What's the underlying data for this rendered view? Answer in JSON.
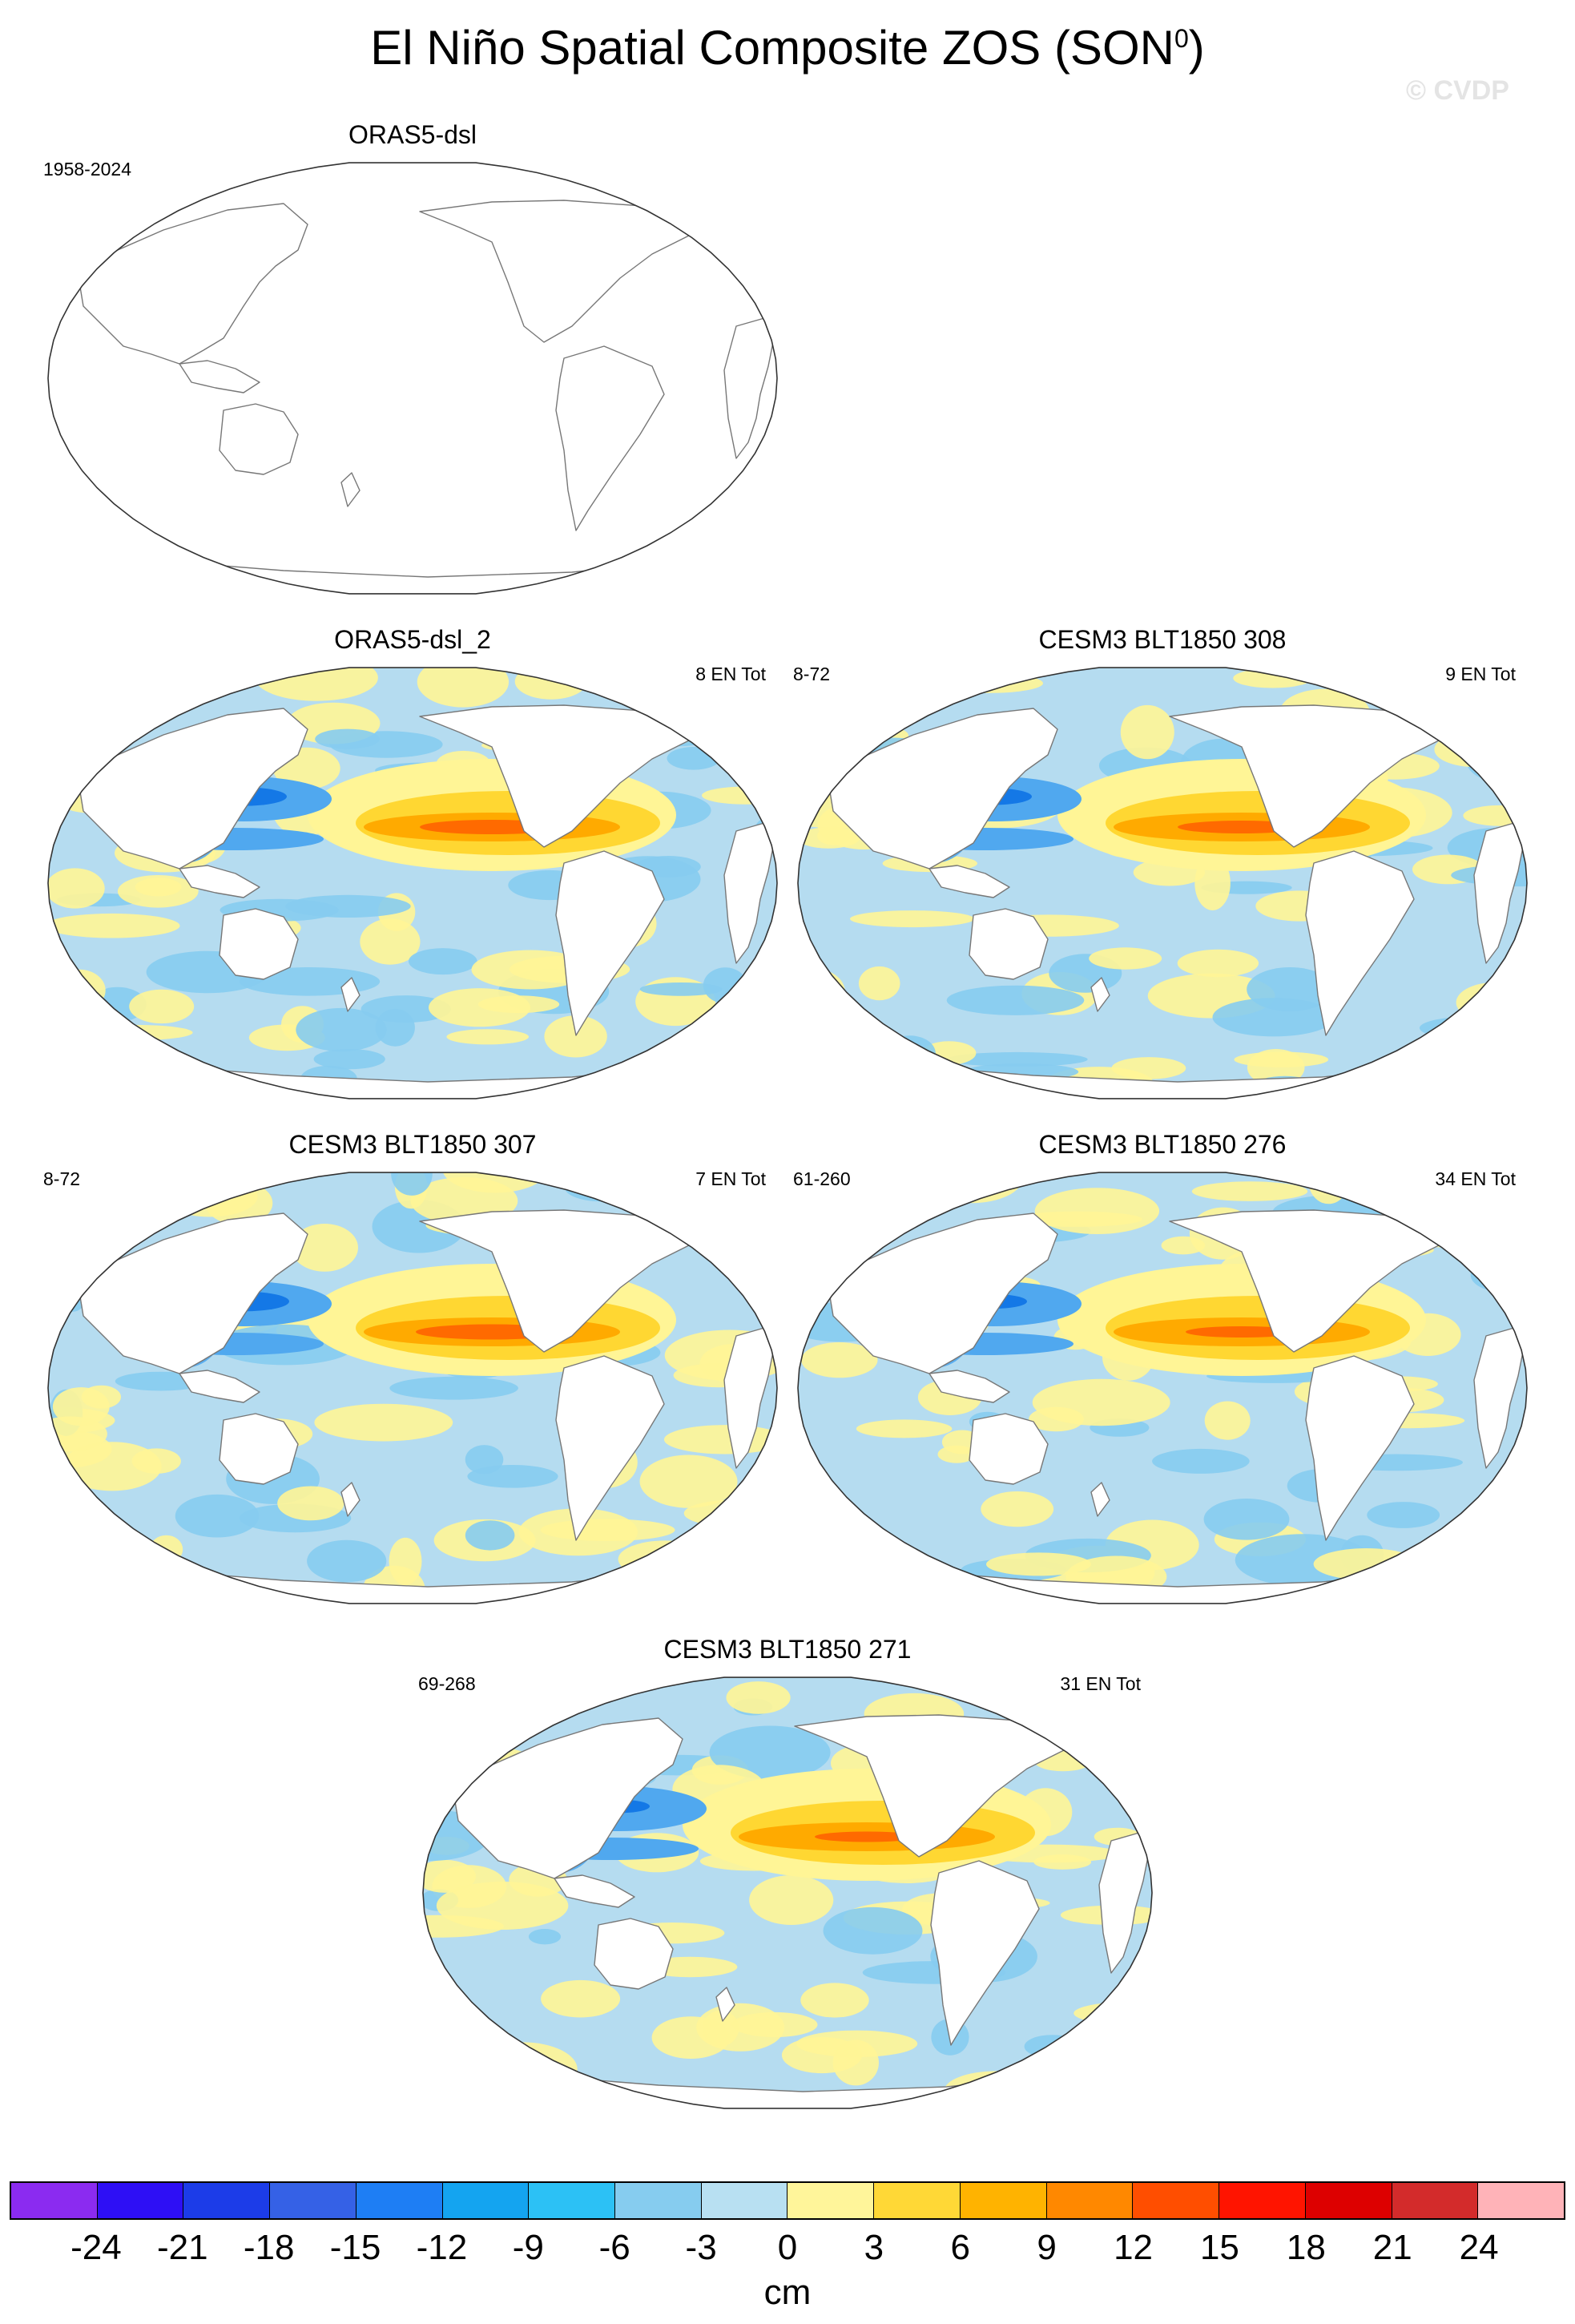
{
  "title_main": "El Niño Spatial Composite ZOS (SON",
  "title_sup": "0",
  "title_close": ")",
  "watermark": "© CVDP",
  "colors": {
    "ocean_base": "#b5dcf0",
    "pos_light": "#fff596",
    "pos_mid": "#ffd732",
    "pos_strong": "#ffaa00",
    "pos_peak": "#ff6a00",
    "neg_mid": "#50a8ef",
    "neg_strong": "#1478e6",
    "land": "#ffffff",
    "coast": "#777777"
  },
  "panels": [
    {
      "title": "ORAS5-dsl",
      "left_label": "1958-2024",
      "right_label": "",
      "amplitude": 0
    },
    {
      "title": "ORAS5-dsl_2",
      "left_label": "",
      "right_label": "8 EN Tot",
      "amplitude": 0.9
    },
    {
      "title": "CESM3 BLT1850 308",
      "left_label": "8-72",
      "right_label": "9 EN Tot",
      "amplitude": 0.8
    },
    {
      "title": "CESM3 BLT1850 307",
      "left_label": "8-72",
      "right_label": "7 EN Tot",
      "amplitude": 0.95
    },
    {
      "title": "CESM3 BLT1850 276",
      "left_label": "61-260",
      "right_label": "34 EN Tot",
      "amplitude": 0.7
    },
    {
      "title": "CESM3 BLT1850 271",
      "left_label": "69-268",
      "right_label": "31 EN Tot",
      "amplitude": 0.65
    }
  ],
  "colorbar": {
    "colors": [
      "#8b2bf0",
      "#2e0ff5",
      "#1c3ce8",
      "#3561e6",
      "#1e7ef4",
      "#14a4f0",
      "#2cc1f5",
      "#86ccef",
      "#b8e0f2",
      "#fff59a",
      "#ffd836",
      "#ffb300",
      "#ff8800",
      "#ff4e00",
      "#ff1400",
      "#dd0000",
      "#d32b2b",
      "#ffb3b8"
    ],
    "labels": [
      "-24",
      "-21",
      "-18",
      "-15",
      "-12",
      "-9",
      "-6",
      "-3",
      "0",
      "3",
      "6",
      "9",
      "12",
      "15",
      "18",
      "21",
      "24"
    ],
    "units": "cm"
  }
}
